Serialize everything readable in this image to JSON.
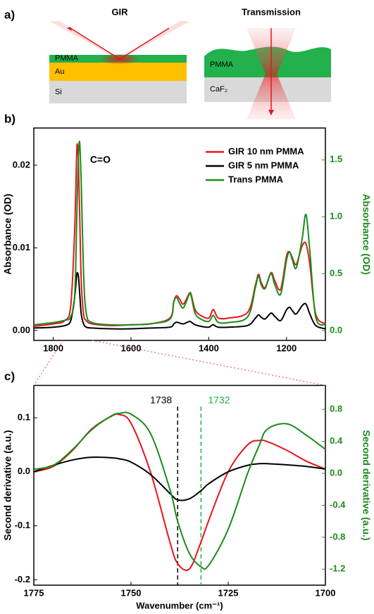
{
  "diagram": {
    "label": "a)",
    "left_title": "GIR",
    "right_title": "Transmission",
    "left_layers": [
      "PMMA",
      "Au",
      "Si"
    ],
    "right_layers": [
      "PMMA",
      "CaF₂"
    ]
  },
  "chart_data": [
    {
      "type": "line",
      "label": "b)",
      "ylabel": "Absorbance (OD)",
      "y2label": "Absorbance (OD)",
      "y2label_color": "#1a8c1a",
      "annotation": "C=O",
      "legend": "upper right",
      "x": [
        1850,
        1800,
        1770,
        1755,
        1745,
        1740,
        1738,
        1735,
        1732,
        1728,
        1722,
        1715,
        1700,
        1650,
        1600,
        1550,
        1500,
        1490,
        1483,
        1475,
        1465,
        1450,
        1445,
        1435,
        1420,
        1400,
        1390,
        1385,
        1375,
        1350,
        1300,
        1280,
        1272,
        1265,
        1255,
        1240,
        1230,
        1215,
        1200,
        1192,
        1185,
        1175,
        1160,
        1150,
        1140,
        1125,
        1100
      ],
      "xlim": [
        1850,
        1100
      ],
      "xticks": [
        1800,
        1600,
        1400,
        1200
      ],
      "ylim": [
        -0.0012,
        0.0245
      ],
      "yticks": [
        {
          "value": 0,
          "label": "0.00"
        },
        0.01,
        0.02
      ],
      "y2lim": [
        -0.087,
        1.78
      ],
      "y2ticks": [
        {
          "value": 0,
          "label": "0.0"
        },
        0.5,
        {
          "value": 1,
          "label": "1.0"
        },
        1.5
      ],
      "series": [
        {
          "name": "GIR 10 nm PMMA",
          "color": "#e8141b",
          "values": [
            0.0005,
            0.0008,
            0.0012,
            0.003,
            0.012,
            0.021,
            0.0225,
            0.02,
            0.014,
            0.006,
            0.002,
            0.0012,
            0.0008,
            0.0006,
            0.0007,
            0.0008,
            0.0015,
            0.0035,
            0.0042,
            0.0038,
            0.0032,
            0.0045,
            0.0043,
            0.0025,
            0.0018,
            0.0015,
            0.0025,
            0.0023,
            0.0015,
            0.0015,
            0.0022,
            0.0055,
            0.0068,
            0.0058,
            0.0052,
            0.007,
            0.006,
            0.005,
            0.009,
            0.0095,
            0.0088,
            0.008,
            0.0102,
            0.0105,
            0.008,
            0.002,
            0.0008
          ]
        },
        {
          "name": "GIR 5 nm PMMA",
          "color": "#000000",
          "values": [
            0.0003,
            0.0004,
            0.0006,
            0.0012,
            0.004,
            0.0065,
            0.007,
            0.0065,
            0.0045,
            0.002,
            0.0008,
            0.0004,
            0.0003,
            0.0002,
            0.0002,
            0.0003,
            0.0004,
            0.0008,
            0.001,
            0.0009,
            0.0008,
            0.0011,
            0.001,
            0.0007,
            0.0005,
            0.0004,
            0.0007,
            0.0006,
            0.0004,
            0.0004,
            0.0006,
            0.0015,
            0.0019,
            0.0016,
            0.0014,
            0.0021,
            0.0017,
            0.0012,
            0.0025,
            0.0028,
            0.0024,
            0.002,
            0.003,
            0.0032,
            0.002,
            0.0006,
            0.0002
          ]
        },
        {
          "name": "Trans PMMA",
          "color": "#1a8c1a",
          "axis": "y2",
          "values": [
            0.05,
            0.07,
            0.09,
            0.12,
            0.3,
            0.9,
            1.2,
            1.55,
            1.65,
            1.3,
            0.5,
            0.15,
            0.07,
            0.05,
            0.05,
            0.06,
            0.1,
            0.25,
            0.29,
            0.24,
            0.2,
            0.32,
            0.3,
            0.15,
            0.1,
            0.08,
            0.13,
            0.12,
            0.07,
            0.07,
            0.12,
            0.38,
            0.48,
            0.4,
            0.37,
            0.5,
            0.4,
            0.32,
            0.62,
            0.69,
            0.62,
            0.55,
            0.8,
            1.02,
            0.7,
            0.12,
            0.05
          ]
        }
      ]
    },
    {
      "type": "line",
      "label": "c)",
      "xlabel": "Wavenumber (cm⁻¹)",
      "ylabel": "Second derivative (a.u.)",
      "y2label": "Second derivative (a.u.)",
      "y2label_color": "#1a8c1a",
      "x": [
        1775,
        1770,
        1765,
        1760,
        1755,
        1753,
        1750,
        1745,
        1740,
        1738,
        1735,
        1732,
        1730,
        1725,
        1720,
        1717,
        1715,
        1710,
        1705,
        1700
      ],
      "xlim": [
        1775,
        1700
      ],
      "xticks": [
        1775,
        1750,
        1725,
        1700
      ],
      "ylim": [
        -0.21,
        0.16
      ],
      "yticks": [
        -0.2,
        -0.1,
        {
          "value": 0,
          "label": "0.0"
        },
        0.1
      ],
      "y2lim": [
        -1.4,
        1.1
      ],
      "y2ticks": [
        -1.2,
        -0.8,
        -0.4,
        {
          "value": 0,
          "label": "0.0"
        },
        0.4,
        0.8
      ],
      "vlines": [
        {
          "value": 1738,
          "color": "#000000"
        },
        {
          "value": 1732,
          "color": "#1fb33a"
        }
      ],
      "series": [
        {
          "name": "GIR 10 nm PMMA",
          "color": "#e8141b",
          "values": [
            0.0,
            0.01,
            0.04,
            0.08,
            0.103,
            0.106,
            0.09,
            0.0,
            -0.13,
            -0.17,
            -0.18,
            -0.13,
            -0.09,
            0.0,
            0.05,
            0.058,
            0.056,
            0.04,
            0.02,
            0.005
          ]
        },
        {
          "name": "GIR 5 nm PMMA",
          "color": "#000000",
          "values": [
            0.0,
            0.012,
            0.022,
            0.027,
            0.026,
            0.024,
            0.018,
            -0.005,
            -0.04,
            -0.052,
            -0.05,
            -0.035,
            -0.022,
            0.0,
            0.012,
            0.015,
            0.015,
            0.013,
            0.01,
            0.005
          ]
        },
        {
          "name": "Trans PMMA",
          "color": "#1a8c1a",
          "axis": "y2",
          "values": [
            0.05,
            0.1,
            0.3,
            0.55,
            0.72,
            0.75,
            0.74,
            0.5,
            -0.2,
            -0.6,
            -1.0,
            -1.17,
            -1.15,
            -0.7,
            0.0,
            0.35,
            0.55,
            0.62,
            0.48,
            0.3
          ]
        }
      ]
    }
  ]
}
